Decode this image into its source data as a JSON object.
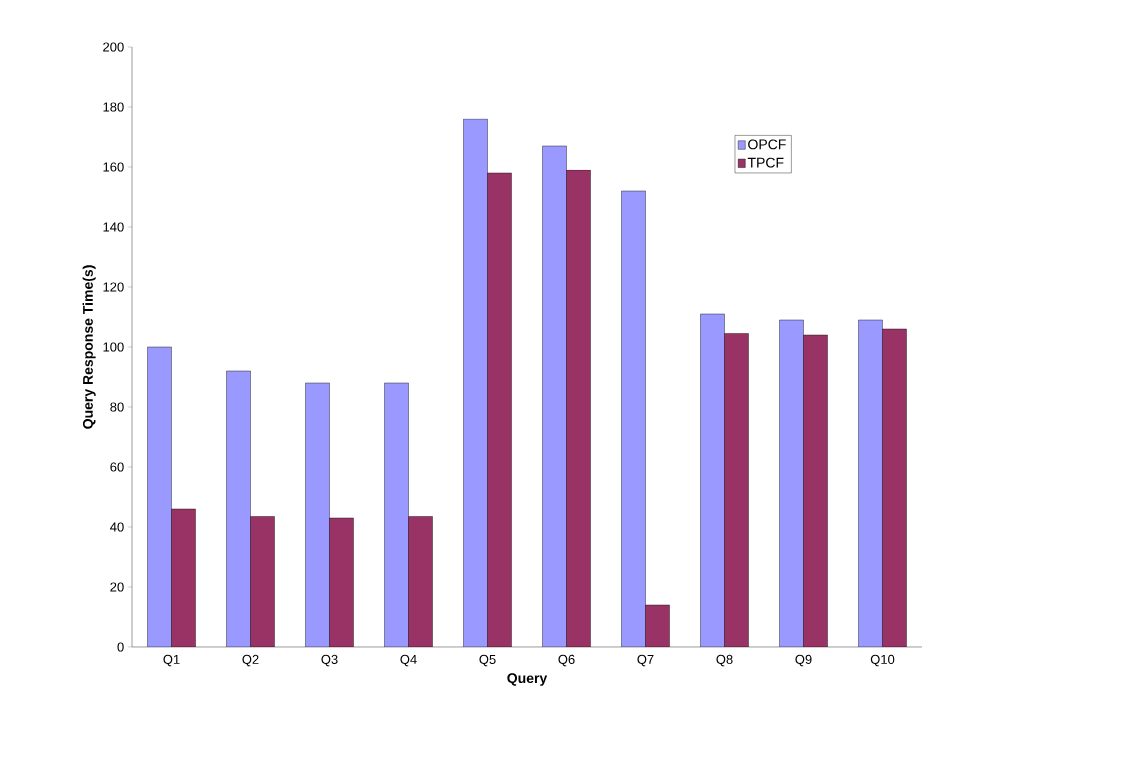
{
  "chart_data": {
    "type": "bar",
    "xlabel": "Query",
    "ylabel": "Query Response Time(s)",
    "categories": [
      "Q1",
      "Q2",
      "Q3",
      "Q4",
      "Q5",
      "Q6",
      "Q7",
      "Q8",
      "Q9",
      "Q10"
    ],
    "series": [
      {
        "name": "OPCF",
        "color": "#9999ff",
        "values": [
          100,
          92,
          88,
          88,
          176,
          167,
          152,
          111,
          109,
          109
        ]
      },
      {
        "name": "TPCF",
        "color": "#993366",
        "values": [
          46,
          43.5,
          43,
          43.5,
          158,
          159,
          14,
          104.5,
          104,
          106
        ]
      }
    ],
    "ylim": [
      0,
      200
    ],
    "yticks": [
      0,
      20,
      40,
      60,
      80,
      100,
      120,
      140,
      160,
      180,
      200
    ],
    "grid": false,
    "legend": "top right"
  }
}
